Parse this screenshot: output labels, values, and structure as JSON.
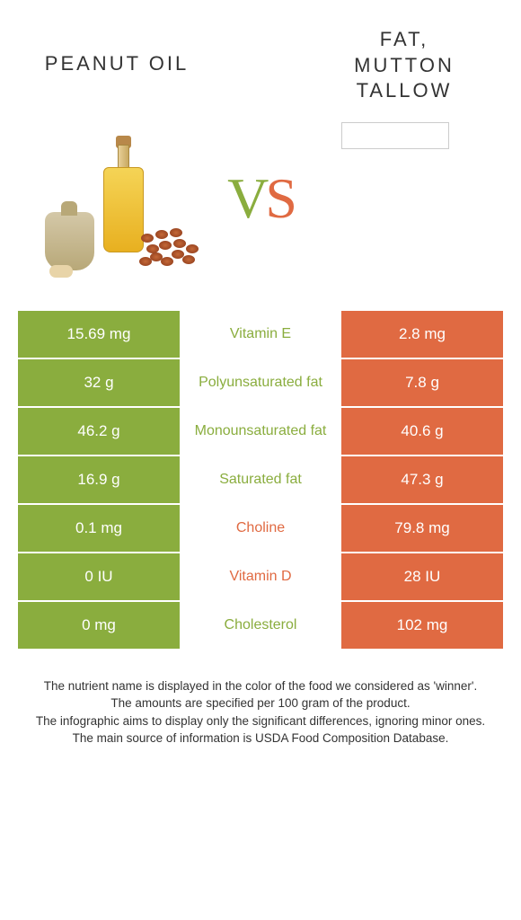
{
  "header": {
    "left_title": "PEANUT OIL",
    "right_title_line1": "FAT,",
    "right_title_line2": "MUTTON",
    "right_title_line3": "TALLOW"
  },
  "vs": {
    "v": "V",
    "s": "S"
  },
  "colors": {
    "green": "#8aad3e",
    "orange": "#e06a42",
    "green_text": "#8aad3e",
    "orange_text": "#e06a42"
  },
  "rows": [
    {
      "left": "15.69 mg",
      "label": "Vitamin E",
      "right": "2.8 mg",
      "winner": "left"
    },
    {
      "left": "32 g",
      "label": "Polyunsaturated fat",
      "right": "7.8 g",
      "winner": "left"
    },
    {
      "left": "46.2 g",
      "label": "Monounsaturated fat",
      "right": "40.6 g",
      "winner": "left"
    },
    {
      "left": "16.9 g",
      "label": "Saturated fat",
      "right": "47.3 g",
      "winner": "left"
    },
    {
      "left": "0.1 mg",
      "label": "Choline",
      "right": "79.8 mg",
      "winner": "right"
    },
    {
      "left": "0 IU",
      "label": "Vitamin D",
      "right": "28 IU",
      "winner": "right"
    },
    {
      "left": "0 mg",
      "label": "Cholesterol",
      "right": "102 mg",
      "winner": "left"
    }
  ],
  "footer": {
    "l1": "The nutrient name is displayed in the color of the food we considered as 'winner'.",
    "l2": "The amounts are specified per 100 gram of the product.",
    "l3": "The infographic aims to display only the significant differences, ignoring minor ones.",
    "l4": "The main source of information is USDA Food Composition Database."
  }
}
